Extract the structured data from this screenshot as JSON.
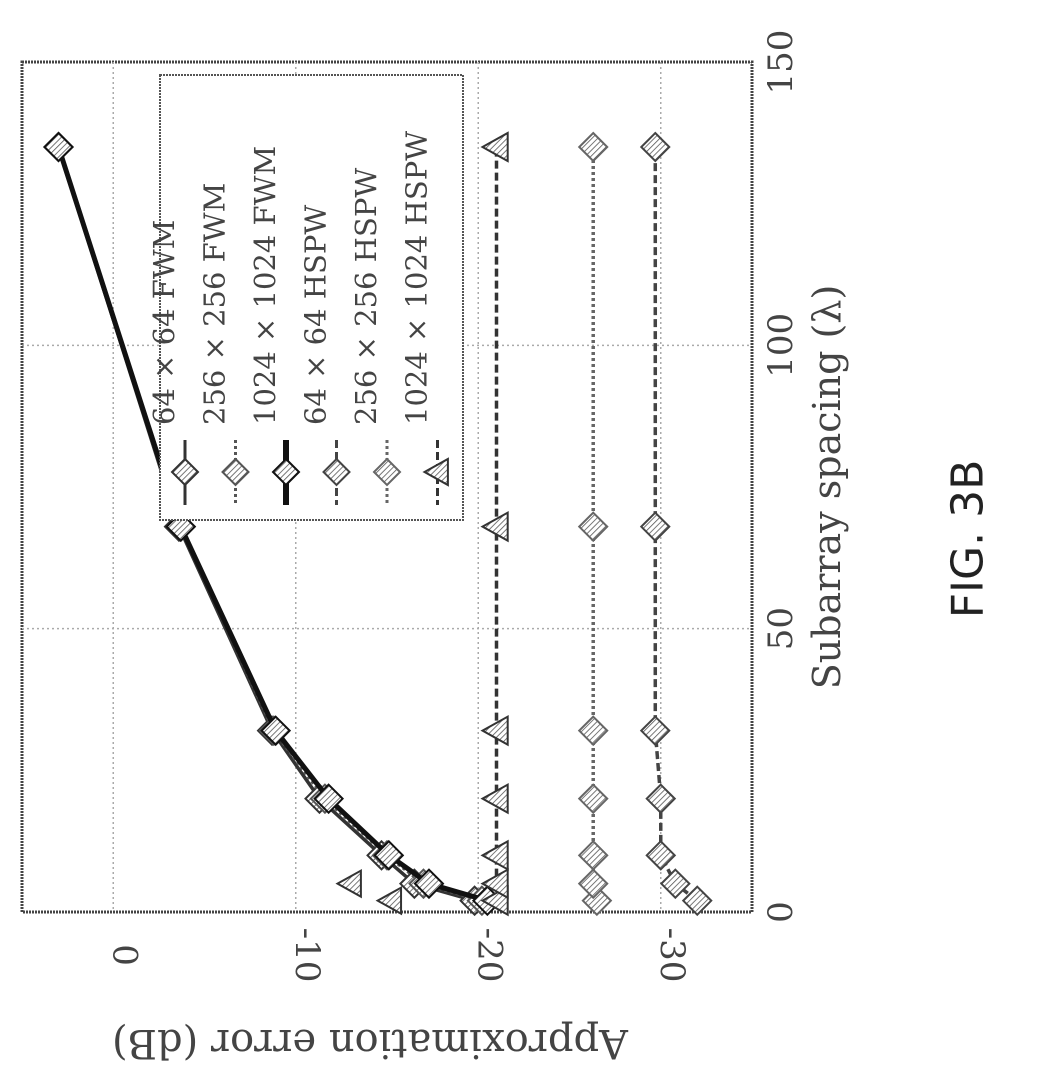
{
  "figure": {
    "caption": "FIG. 3B"
  },
  "chart_data": {
    "type": "line",
    "xlabel": "Subarray spacing (λ)",
    "ylabel": "Approximation error (dB)",
    "xlim": [
      0,
      150
    ],
    "ylim": [
      -35,
      5
    ],
    "xticks": [
      0,
      50,
      100,
      150
    ],
    "xtick_labels": [
      "0",
      "50",
      "100",
      "150"
    ],
    "yticks": [
      0,
      -10,
      -20,
      -30
    ],
    "ytick_labels": [
      "0",
      "-10",
      "-20",
      "-30"
    ],
    "grid": true,
    "legend_position": "top-right",
    "orientation": "figure rotated 90° clockwise on the page",
    "series": [
      {
        "name": "64 × 64 FWM",
        "marker": "diamond",
        "dash": "solid",
        "color": "#333333",
        "x": [
          2,
          5,
          10,
          20,
          32,
          68,
          135
        ],
        "y": [
          -19.8,
          -16.5,
          -14.7,
          -11.3,
          -8.7,
          -3.6,
          3.0
        ]
      },
      {
        "name": "256 × 256 FWM",
        "marker": "diamond",
        "dash": "dotted",
        "color": "#555555",
        "x": [
          2,
          5,
          10,
          20,
          32,
          68,
          135
        ],
        "y": [
          -20.2,
          -17.0,
          -15.0,
          -11.6,
          -8.8,
          -3.7,
          3.0
        ]
      },
      {
        "name": "1024 × 1024 FWM",
        "marker": "diamond",
        "dash": "solid",
        "color": "#111111",
        "x": [
          2,
          5,
          10,
          20,
          32,
          68,
          135
        ],
        "y": [
          -20.5,
          -17.3,
          -15.1,
          -11.8,
          -8.9,
          -3.7,
          3.0
        ]
      },
      {
        "name": "64 × 64 HSPW",
        "marker": "diamond",
        "dash": "dashed",
        "color": "#444444",
        "x": [
          2,
          5,
          10,
          20,
          32,
          68,
          135
        ],
        "y": [
          -32.0,
          -30.8,
          -30.0,
          -30.0,
          -29.7,
          -29.7,
          -29.7
        ]
      },
      {
        "name": "256 × 256 HSPW",
        "marker": "diamond",
        "dash": "dotted",
        "color": "#666666",
        "x": [
          2,
          5,
          10,
          20,
          32,
          68,
          135
        ],
        "y": [
          -26.5,
          -26.3,
          -26.3,
          -26.3,
          -26.3,
          -26.3,
          -26.3
        ]
      },
      {
        "name": "1024 × 1024 HSPW",
        "marker": "triangle",
        "dash": "dashed",
        "color": "#333333",
        "x": [
          2,
          5,
          10,
          20,
          32,
          68,
          135
        ],
        "y": [
          -21.0,
          -21.0,
          -21.0,
          -21.0,
          -21.0,
          -21.0,
          -21.0
        ]
      }
    ],
    "extra_points": [
      {
        "series_marker": "triangle",
        "x": 2,
        "y": -15.2
      },
      {
        "series_marker": "triangle",
        "x": 5,
        "y": -13.0
      }
    ]
  }
}
